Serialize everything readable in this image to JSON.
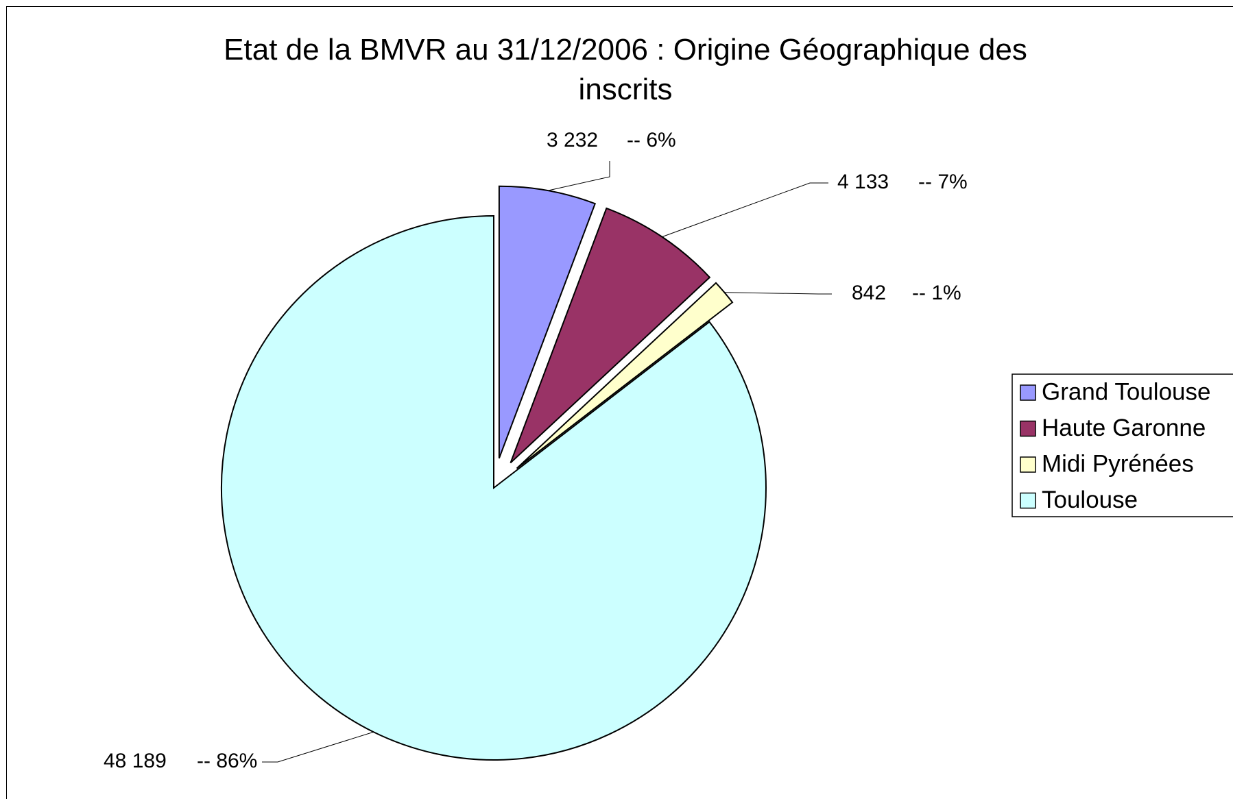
{
  "chart_data": {
    "type": "pie",
    "title": "Etat de la BMVR au 31/12/2006 : Origine Géographique des inscrits",
    "categories": [
      "Grand Toulouse",
      "Haute Garonne",
      "Midi Pyrénées",
      "Toulouse"
    ],
    "values": [
      3232,
      4133,
      842,
      48189
    ],
    "value_labels": [
      "3 232",
      "4 133",
      "842",
      "48 189"
    ],
    "percent_labels": [
      "-- 6%",
      "-- 7%",
      "-- 1%",
      "-- 86%"
    ],
    "colors": [
      "#9999ff",
      "#993366",
      "#ffffcc",
      "#ccffff"
    ],
    "legend": "right"
  }
}
